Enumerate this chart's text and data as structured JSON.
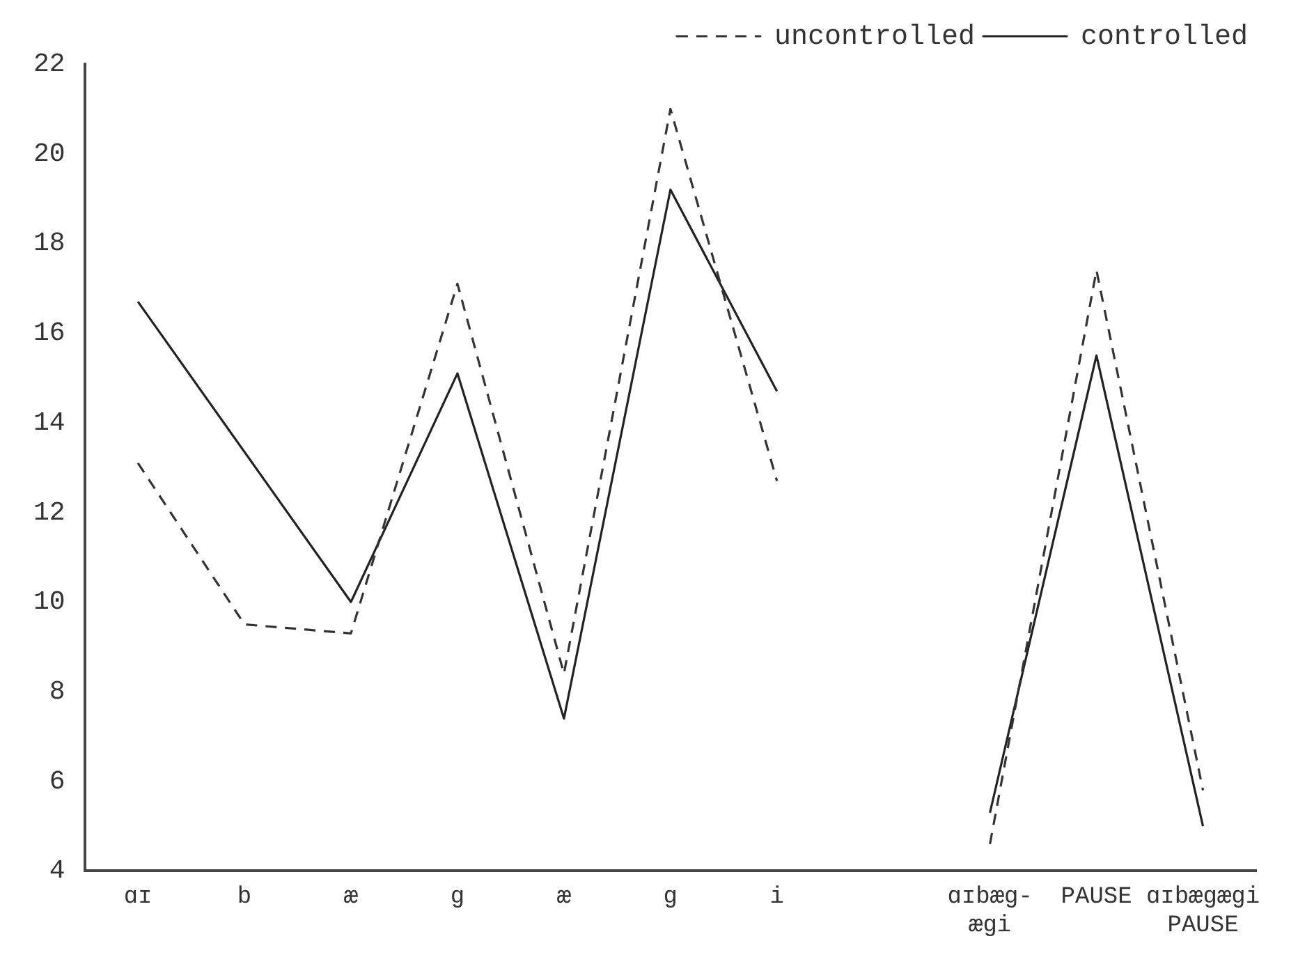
{
  "chart_data": {
    "type": "line",
    "categories": [
      "ɑɪ",
      "b",
      "æ",
      "g",
      "æ",
      "g",
      "i",
      null,
      "ɑɪbæg-\næɡi",
      "PAUSE",
      "ɑɪbægæɡi\nPAUSE"
    ],
    "series": [
      {
        "name": "uncontrolled",
        "color": "#333333",
        "line_style": "dashed",
        "values": [
          13.1,
          9.5,
          9.3,
          17.1,
          8.4,
          21.0,
          12.7,
          null,
          4.6,
          17.4,
          5.8
        ]
      },
      {
        "name": "controlled",
        "color": "#222222",
        "line_style": "solid",
        "values": [
          16.7,
          null,
          10.0,
          15.1,
          7.4,
          19.2,
          14.7,
          null,
          5.3,
          15.5,
          5.0
        ]
      }
    ],
    "ylim": [
      4,
      22
    ],
    "yticks": [
      4,
      6,
      8,
      10,
      12,
      14,
      16,
      18,
      20,
      22
    ],
    "grid": false,
    "legend": "top right",
    "marker": "none"
  }
}
